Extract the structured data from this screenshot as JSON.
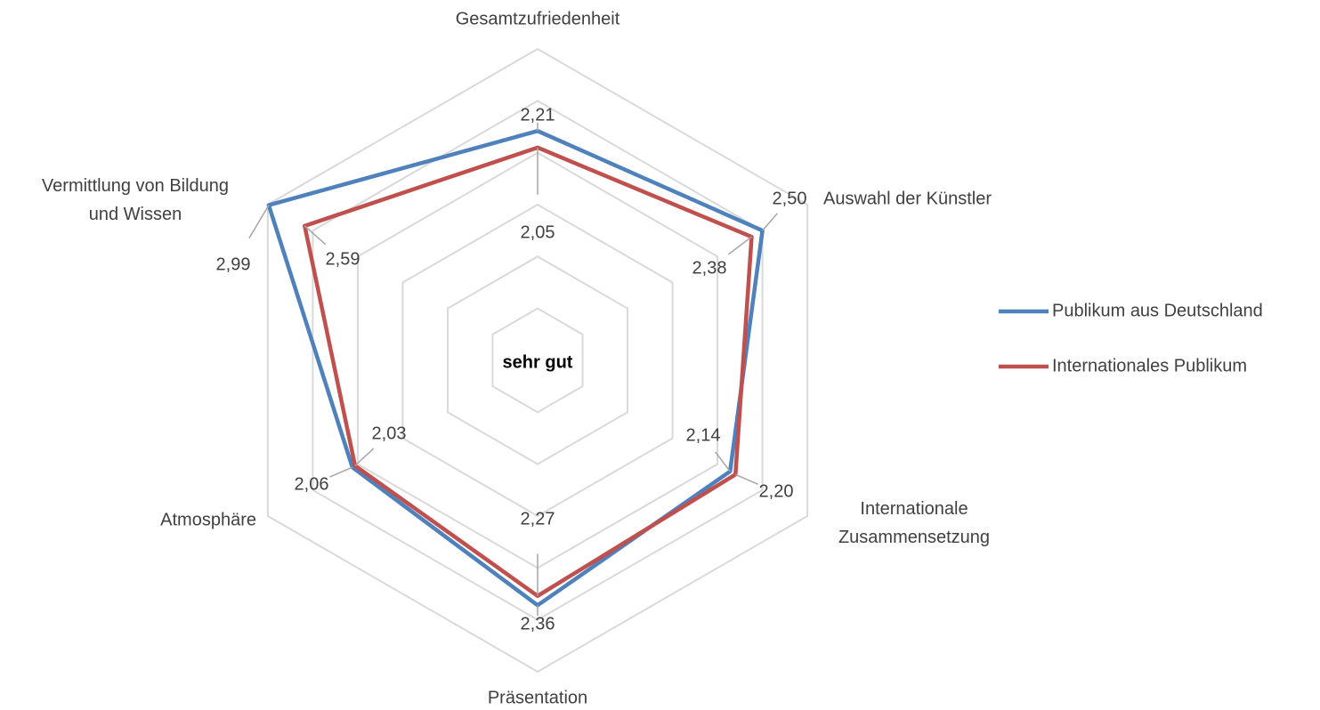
{
  "chart_data": {
    "type": "radar",
    "categories": [
      "Gesamtzufriedenheit",
      "Auswahl der Künstler",
      "Internationale\nZusammensetzung",
      "Präsentation",
      "Atmosphäre",
      "Vermittlung von Bildung\nund Wissen"
    ],
    "series": [
      {
        "name": "Publikum aus Deutschland",
        "color": "#4f81bd",
        "values": [
          2.21,
          2.5,
          2.14,
          2.36,
          2.06,
          2.99
        ],
        "value_labels": [
          "2,21",
          "2,50",
          "2,14",
          "2,36",
          "2,06",
          "2,99"
        ]
      },
      {
        "name": "Internationales Publikum",
        "color": "#c0504d",
        "values": [
          2.05,
          2.38,
          2.2,
          2.27,
          2.03,
          2.59
        ],
        "value_labels": [
          "2,05",
          "2,38",
          "2,20",
          "2,27",
          "2,03",
          "2,59"
        ]
      }
    ],
    "ylim": [
      0,
      3
    ],
    "yticks": [
      0,
      0.5,
      1,
      1.5,
      2,
      2.5,
      3
    ],
    "grid": true,
    "annotation": "sehr gut",
    "legend": "right"
  }
}
